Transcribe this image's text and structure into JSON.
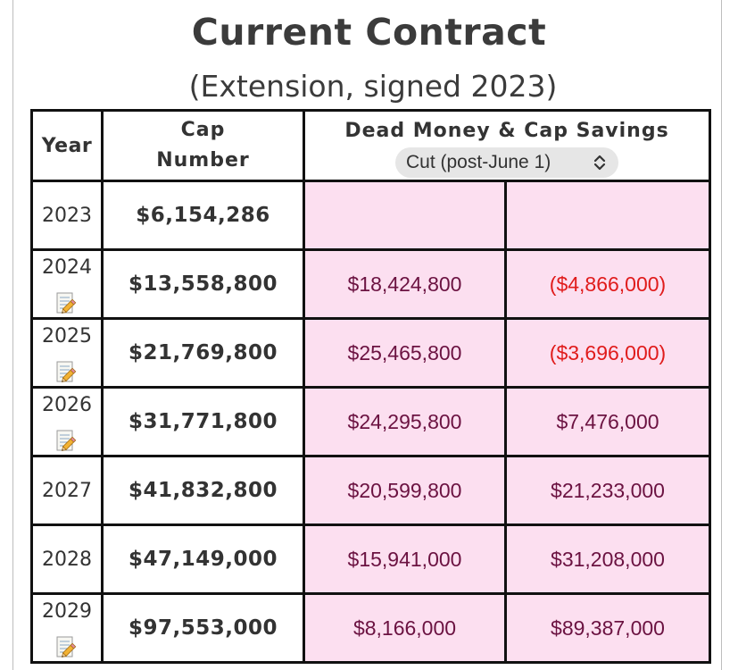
{
  "page": {
    "title": "Current Contract",
    "subtitle": "(Extension, signed 2023)"
  },
  "table": {
    "headers": {
      "year": "Year",
      "cap_line1": "Cap",
      "cap_line2": "Number",
      "dead_money": "Dead Money & Cap Savings"
    },
    "scenario_select": {
      "value": "Cut (post-June 1)"
    },
    "rows": [
      {
        "year": "2023",
        "cap": "$6,154,286",
        "dead": "",
        "savings": "",
        "note": false
      },
      {
        "year": "2024",
        "cap": "$13,558,800",
        "dead": "$18,424,800",
        "savings": "($4,866,000)",
        "note": true
      },
      {
        "year": "2025",
        "cap": "$21,769,800",
        "dead": "$25,465,800",
        "savings": "($3,696,000)",
        "note": true
      },
      {
        "year": "2026",
        "cap": "$31,771,800",
        "dead": "$24,295,800",
        "savings": "$7,476,000",
        "note": true
      },
      {
        "year": "2027",
        "cap": "$41,832,800",
        "dead": "$20,599,800",
        "savings": "$21,233,000",
        "note": false
      },
      {
        "year": "2028",
        "cap": "$47,149,000",
        "dead": "$15,941,000",
        "savings": "$31,208,000",
        "note": false
      },
      {
        "year": "2029",
        "cap": "$97,553,000",
        "dead": "$8,166,000",
        "savings": "$89,387,000",
        "note": true
      }
    ]
  },
  "colors": {
    "dead_cell_bg": "#fcdff0",
    "dead_cell_border": "#7e1147",
    "positive_text": "#6b1241",
    "negative_text": "#e01b1b"
  },
  "icons": {
    "note": "memo-pencil-icon",
    "select": "chevron-up-down-icon"
  }
}
